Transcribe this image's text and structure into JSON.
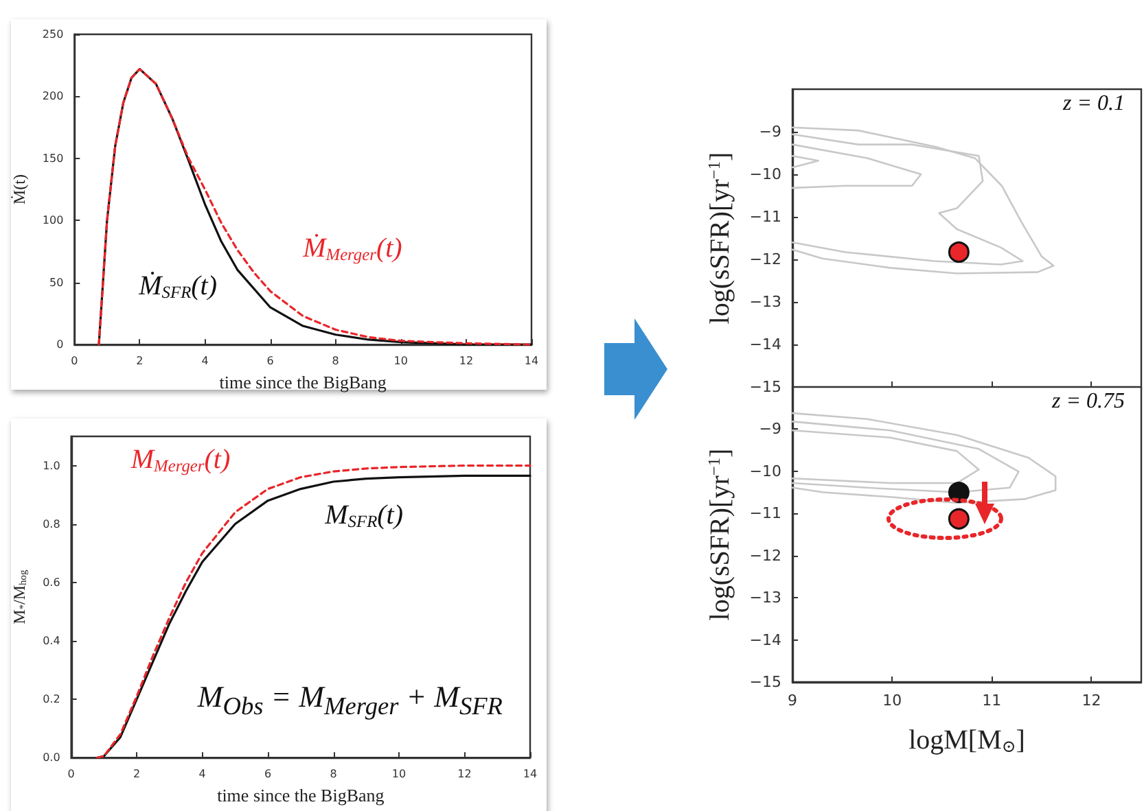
{
  "chart_data": [
    {
      "type": "line",
      "xlabel": "time since the BigBang",
      "ylabel": "Ṁ(t)",
      "xlim": [
        0,
        14
      ],
      "xticks": [
        0,
        2,
        4,
        6,
        8,
        10,
        12,
        14
      ],
      "ylim": [
        0,
        250
      ],
      "yticks": [
        0,
        50,
        100,
        150,
        200,
        250
      ],
      "grid": false,
      "legend": false,
      "marker": "none",
      "series": [
        {
          "name": "Ṁ$_{SFR}$(t)",
          "color": "#111111",
          "line_style": "solid",
          "x": [
            0.75,
            1,
            1.25,
            1.5,
            1.75,
            2,
            2.5,
            3,
            3.5,
            4,
            4.5,
            5,
            6,
            7,
            8,
            9,
            10,
            11,
            12,
            14
          ],
          "values": [
            0,
            100,
            160,
            195,
            215,
            222,
            210,
            182,
            148,
            113,
            83,
            60,
            30,
            15,
            8,
            4,
            2,
            1,
            0,
            0
          ]
        },
        {
          "name": "Ṁ$_{Merger}$(t)",
          "color": "#e8262a",
          "line_style": "dashed",
          "x": [
            0.75,
            1,
            1.25,
            1.5,
            1.75,
            2,
            2.5,
            3,
            3.5,
            4,
            4.5,
            5,
            5.5,
            6,
            7,
            8,
            9,
            10,
            11,
            12,
            14
          ],
          "values": [
            0,
            100,
            160,
            195,
            215,
            222,
            210,
            182,
            150,
            125,
            98,
            76,
            58,
            43,
            23,
            12,
            6,
            3,
            2,
            1,
            0
          ]
        }
      ]
    },
    {
      "type": "line",
      "xlabel": "time since the BigBang",
      "ylabel": "M$_{*}$/M$_{hog}$",
      "xlim": [
        0,
        14
      ],
      "xticks": [
        0,
        2,
        4,
        6,
        8,
        10,
        12,
        14
      ],
      "ylim": [
        0,
        1.1
      ],
      "yticks": [
        {
          "value": 0,
          "label": "0.0"
        },
        0.2,
        0.4,
        0.6,
        0.8,
        {
          "value": 1,
          "label": "1.0"
        }
      ],
      "grid": false,
      "legend": false,
      "marker": "none",
      "annotations": [
        "M$_{Obs}$ = M$_{Merger}$ + M$_{SFR}$"
      ],
      "series": [
        {
          "name": "M$_{SFR}$(t)",
          "color": "#111111",
          "line_style": "solid",
          "x": [
            0.8,
            1,
            1.5,
            2,
            2.5,
            3,
            3.5,
            4,
            5,
            6,
            7,
            8,
            9,
            10,
            12,
            14
          ],
          "values": [
            0,
            0.005,
            0.07,
            0.2,
            0.33,
            0.46,
            0.57,
            0.67,
            0.8,
            0.88,
            0.92,
            0.945,
            0.955,
            0.96,
            0.965,
            0.965
          ]
        },
        {
          "name": "M$_{Merger}$(t)",
          "color": "#e8262a",
          "line_style": "dashed",
          "x": [
            0.8,
            1,
            1.5,
            2,
            2.5,
            3,
            3.5,
            4,
            5,
            6,
            7,
            8,
            9,
            10,
            12,
            14
          ],
          "values": [
            0,
            0.005,
            0.08,
            0.21,
            0.35,
            0.48,
            0.6,
            0.7,
            0.84,
            0.92,
            0.96,
            0.98,
            0.99,
            0.995,
            1,
            1
          ]
        }
      ]
    },
    {
      "type": "scatter",
      "ylabel": "log(sSFR)[yr$^{−1}$]",
      "xlim": [
        9,
        12.5
      ],
      "xticks": [
        9,
        10,
        11,
        12
      ],
      "ylim": [
        -15,
        -8
      ],
      "yticks": [
        -15,
        -14,
        -13,
        -12,
        -11,
        -10,
        -9
      ],
      "tick_labels": "y",
      "grid": false,
      "legend": false,
      "annotations": [
        "z = 0.1"
      ],
      "series": [
        {
          "type": "line",
          "color": "#c8c8c8",
          "x": [
            9,
            9.66,
            10.43,
            10.83,
            11.1,
            11.3,
            11.5,
            11.62,
            11.46,
            10.65,
            9.98,
            9.3,
            9
          ],
          "values": [
            -8.9,
            -8.97,
            -9.35,
            -9.62,
            -10.27,
            -11.13,
            -11.93,
            -12.15,
            -12.3,
            -12.33,
            -12.2,
            -11.98,
            -11.77
          ]
        },
        {
          "type": "line",
          "color": "#c8c8c8",
          "x": [
            9,
            9.66,
            10.2,
            10.87,
            10.91,
            10.65,
            10.47,
            10.65,
            11.09,
            11.31,
            11.09,
            10.42,
            9.53,
            9
          ],
          "values": [
            -9.06,
            -9.3,
            -9.3,
            -9.57,
            -10.16,
            -10.8,
            -10.91,
            -11.29,
            -11.72,
            -12.04,
            -12.12,
            -12.04,
            -11.83,
            -11.6
          ]
        },
        {
          "type": "line",
          "color": "#c8c8c8",
          "x": [
            9,
            9.75,
            10.29,
            10.2,
            9.53,
            9
          ],
          "values": [
            -9.3,
            -9.62,
            -10,
            -10.27,
            -10.27,
            -10.32
          ]
        },
        {
          "type": "line",
          "color": "#c8c8c8",
          "x": [
            9,
            9.26,
            9
          ],
          "values": [
            -9.57,
            -9.68,
            -9.84
          ]
        },
        {
          "color": "#e8262a",
          "x": [
            10.67
          ],
          "values": [
            -11.83
          ]
        }
      ]
    },
    {
      "type": "scatter",
      "xlabel": "logM[M$_{⊙}$]",
      "ylabel": "log(sSFR)[yr$^{−1}$]",
      "xlim": [
        9,
        12.5
      ],
      "xticks": [
        9,
        10,
        11,
        12
      ],
      "ylim": [
        -15,
        -8
      ],
      "yticks": [
        -15,
        -14,
        -13,
        -12,
        -11,
        -10,
        -9
      ],
      "grid": false,
      "legend": false,
      "annotations": [
        "z = 0.75"
      ],
      "series": [
        {
          "type": "line",
          "color": "#c8c8c8",
          "x": [
            9,
            9.75,
            10.65,
            11.37,
            11.64,
            11.64,
            11.33,
            10.65,
            9.98,
            9.31,
            9
          ],
          "values": [
            -8.62,
            -8.76,
            -9.14,
            -9.68,
            -10.12,
            -10.45,
            -10.66,
            -10.75,
            -10.61,
            -10.5,
            -10.39
          ]
        },
        {
          "type": "line",
          "color": "#c8c8c8",
          "x": [
            9,
            9.98,
            10.87,
            11.27,
            11.18,
            10.65,
            9.75,
            9
          ],
          "values": [
            -8.82,
            -9.03,
            -9.47,
            -10.01,
            -10.39,
            -10.5,
            -10.39,
            -10.28
          ]
        },
        {
          "type": "line",
          "color": "#c8c8c8",
          "x": [
            9,
            9.98,
            10.65,
            10.87,
            10.65,
            9.98,
            9
          ],
          "values": [
            -9.03,
            -9.2,
            -9.52,
            -9.96,
            -10.28,
            -10.28,
            -10.17
          ]
        },
        {
          "color": "#111111",
          "x": [
            10.67
          ],
          "values": [
            -10.5
          ]
        },
        {
          "color": "#e8262a",
          "x": [
            10.67
          ],
          "values": [
            -11.13
          ]
        }
      ]
    }
  ]
}
